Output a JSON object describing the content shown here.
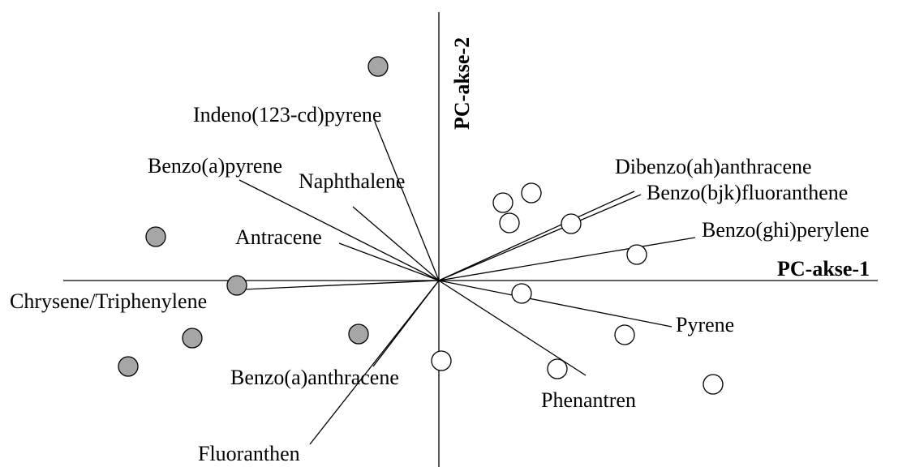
{
  "axes": {
    "x_label": "PC-akse-1",
    "y_label": "PC-akse-2"
  },
  "variables": [
    {
      "label": "Indeno(123-cd)pyrene"
    },
    {
      "label": "Benzo(a)pyrene"
    },
    {
      "label": "Naphthalene"
    },
    {
      "label": "Antracene"
    },
    {
      "label": "Chrysene/Triphenylene"
    },
    {
      "label": "Benzo(a)anthracene"
    },
    {
      "label": "Fluoranthen"
    },
    {
      "label": "Phenantren"
    },
    {
      "label": "Pyrene"
    },
    {
      "label": "Benzo(ghi)perylene"
    },
    {
      "label": "Benzo(bjk)fluoranthene"
    },
    {
      "label": "Dibenzo(ah)anthracene"
    }
  ]
}
